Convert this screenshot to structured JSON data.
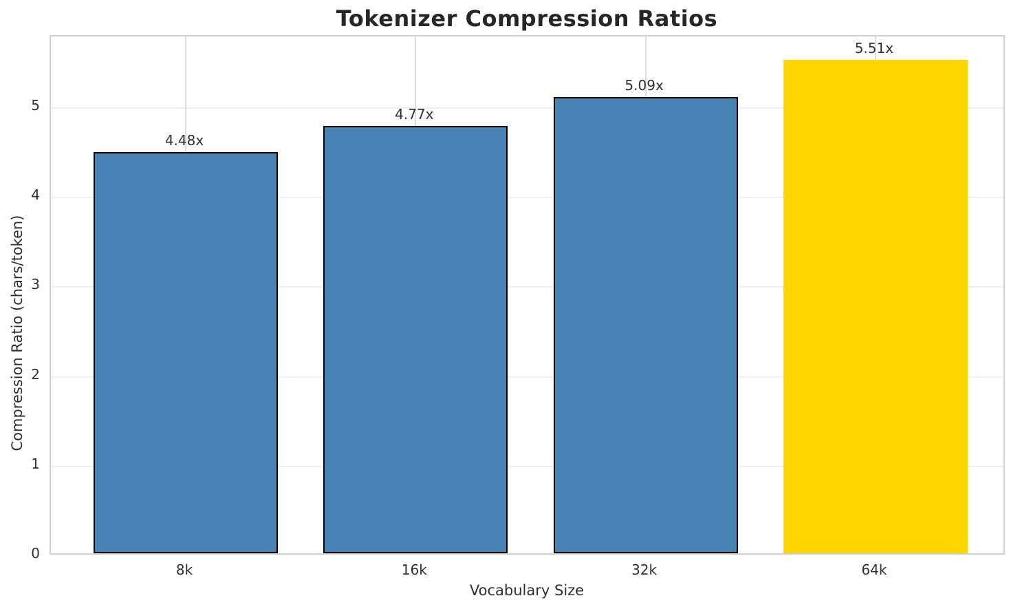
{
  "chart_data": {
    "type": "bar",
    "title": "Tokenizer Compression Ratios",
    "xlabel": "Vocabulary Size",
    "ylabel": "Compression Ratio (chars/token)",
    "categories": [
      "8k",
      "16k",
      "32k",
      "64k"
    ],
    "values": [
      4.48,
      4.77,
      5.09,
      5.51
    ],
    "bar_labels": [
      "4.48x",
      "4.77x",
      "5.09x",
      "5.51x"
    ],
    "yticks": [
      "0",
      "1",
      "2",
      "3",
      "4",
      "5"
    ],
    "ylim": [
      0,
      5.8
    ],
    "grid": true,
    "legend_position": "none",
    "bar_colors": [
      "#4682B4",
      "#4682B4",
      "#4682B4",
      "#FFD700"
    ],
    "bar_edge_colors": [
      "#000000",
      "#000000",
      "#000000",
      "none"
    ],
    "highlight_index": 3,
    "colors": {
      "blue_bar": "#4682B4",
      "gold_bar": "#FFD700",
      "bar_edge": "#000000",
      "text": "#262626",
      "tick_text": "#303030",
      "grid_line_h": "#efefef",
      "grid_line_v": "#dcdcdc",
      "spine": "#d0d0d0",
      "background": "#ffffff"
    }
  }
}
